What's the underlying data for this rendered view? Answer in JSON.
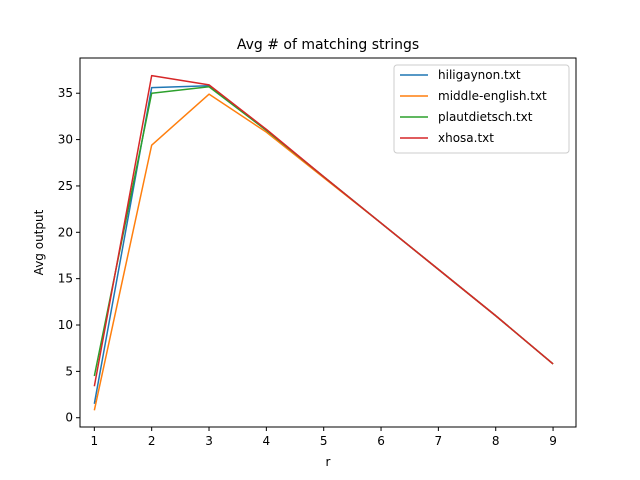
{
  "chart_data": {
    "type": "line",
    "title": "Avg # of matching strings",
    "xlabel": "r",
    "ylabel": "Avg output",
    "xlim": [
      0.75,
      9.4
    ],
    "ylim": [
      -1.0,
      38.8
    ],
    "xticks": [
      1,
      2,
      3,
      4,
      5,
      6,
      7,
      8,
      9
    ],
    "yticks": [
      0,
      5,
      10,
      15,
      20,
      25,
      30,
      35
    ],
    "legend_position": "top-right",
    "grid": false,
    "x": [
      1,
      2,
      3,
      4,
      5,
      6,
      7,
      8,
      9
    ],
    "series": [
      {
        "name": "hiligaynon.txt",
        "color": "#1f77b4",
        "values": [
          1.5,
          35.6,
          35.8,
          31.0,
          26.0,
          21.0,
          16.0,
          11.0,
          5.8
        ]
      },
      {
        "name": "middle-english.txt",
        "color": "#ff7f0e",
        "values": [
          0.8,
          29.4,
          34.9,
          30.8,
          25.9,
          21.0,
          16.0,
          11.0,
          5.8
        ]
      },
      {
        "name": "plautdietsch.txt",
        "color": "#2ca02c",
        "values": [
          4.5,
          35.0,
          35.7,
          31.0,
          26.0,
          21.0,
          16.0,
          11.0,
          5.8
        ]
      },
      {
        "name": "xhosa.txt",
        "color": "#d62728",
        "values": [
          3.4,
          36.9,
          35.9,
          31.1,
          26.0,
          21.0,
          16.0,
          11.0,
          5.8
        ]
      }
    ]
  }
}
